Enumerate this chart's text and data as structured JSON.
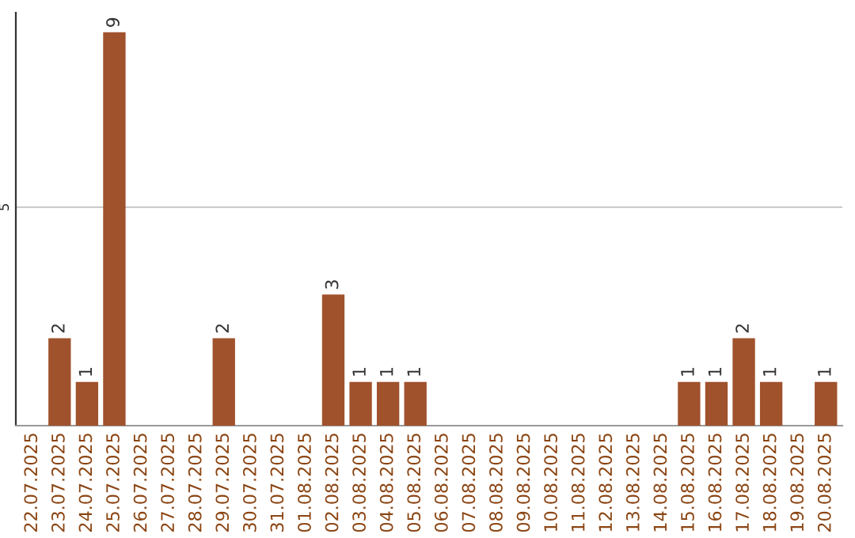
{
  "chart_data": {
    "type": "bar",
    "categories": [
      "22.07.2025",
      "23.07.2025",
      "24.07.2025",
      "25.07.2025",
      "26.07.2025",
      "27.07.2025",
      "28.07.2025",
      "29.07.2025",
      "30.07.2025",
      "31.07.2025",
      "01.08.2025",
      "02.08.2025",
      "03.08.2025",
      "04.08.2025",
      "05.08.2025",
      "06.08.2025",
      "07.08.2025",
      "08.08.2025",
      "09.08.2025",
      "10.08.2025",
      "11.08.2025",
      "12.08.2025",
      "13.08.2025",
      "14.08.2025",
      "15.08.2025",
      "16.08.2025",
      "17.08.2025",
      "18.08.2025",
      "19.08.2025",
      "20.08.2025"
    ],
    "values": [
      0,
      2,
      1,
      9,
      0,
      0,
      0,
      2,
      0,
      0,
      0,
      3,
      1,
      1,
      1,
      0,
      0,
      0,
      0,
      0,
      0,
      0,
      0,
      0,
      1,
      1,
      2,
      1,
      0,
      1
    ],
    "value_labels": [
      null,
      "2",
      "1",
      "9",
      null,
      null,
      null,
      "2",
      null,
      null,
      null,
      "3",
      "1",
      "1",
      "1",
      null,
      null,
      null,
      null,
      null,
      null,
      null,
      null,
      null,
      "1",
      "1",
      "2",
      "1",
      null,
      "1"
    ],
    "color": "#a0522d",
    "ylim": [
      0,
      9.45
    ],
    "yticks": [
      5
    ],
    "grid": "y",
    "legend": false
  }
}
